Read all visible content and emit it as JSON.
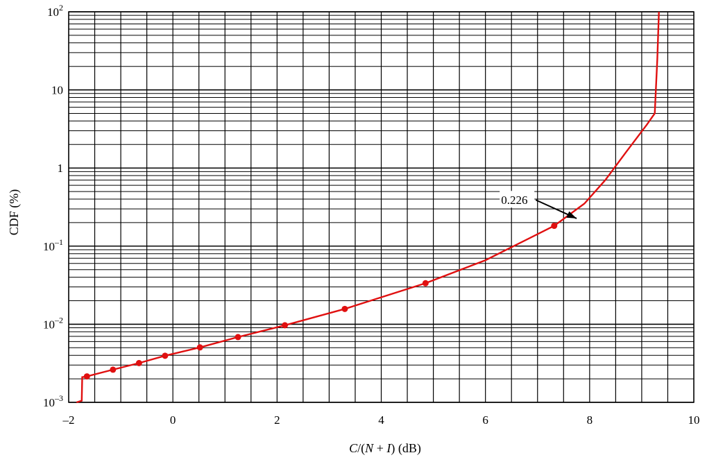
{
  "chart_data": {
    "type": "line",
    "title": "",
    "xlabel": "C/(N + I) (dB)",
    "ylabel": "CDF (%)",
    "xlim": [
      -2,
      10
    ],
    "ylim": [
      0.001,
      100
    ],
    "yscale": "log",
    "grid": true,
    "x_tick_labels": [
      "–2",
      "0",
      "2",
      "4",
      "6",
      "8",
      "10"
    ],
    "y_tick_labels": [
      {
        "base": "10",
        "exp": "–3"
      },
      {
        "base": "10",
        "exp": "–2"
      },
      {
        "base": "10",
        "exp": "–1"
      },
      {
        "base": "1",
        "exp": ""
      },
      {
        "base": "10",
        "exp": ""
      },
      {
        "base": "10",
        "exp": "2"
      }
    ],
    "series": [
      {
        "color": "#e01010",
        "line": [
          [
            -1.85,
            0.001
          ],
          [
            -1.75,
            0.00105
          ],
          [
            -1.74,
            0.0021
          ],
          [
            -1.65,
            0.00215
          ],
          [
            -1.15,
            0.00262
          ],
          [
            -0.65,
            0.00318
          ],
          [
            -0.15,
            0.00395
          ],
          [
            0.52,
            0.00505
          ],
          [
            1.25,
            0.00685
          ],
          [
            2.15,
            0.0097
          ],
          [
            3.3,
            0.0157
          ],
          [
            4.85,
            0.0335
          ],
          [
            6.0,
            0.066
          ],
          [
            7.32,
            0.182
          ],
          [
            7.9,
            0.35
          ],
          [
            8.3,
            0.7
          ],
          [
            8.7,
            1.6
          ],
          [
            9.1,
            3.6
          ],
          [
            9.25,
            5.0
          ],
          [
            9.3,
            25
          ],
          [
            9.33,
            100
          ]
        ],
        "markers": [
          [
            -1.65,
            0.00215
          ],
          [
            -1.15,
            0.00262
          ],
          [
            -0.65,
            0.00318
          ],
          [
            -0.15,
            0.00395
          ],
          [
            0.52,
            0.00505
          ],
          [
            1.25,
            0.00685
          ],
          [
            2.15,
            0.0097
          ],
          [
            3.3,
            0.0157
          ],
          [
            4.85,
            0.0335
          ],
          [
            7.32,
            0.182
          ]
        ]
      }
    ],
    "annotations": [
      {
        "text": "0.226",
        "arrow_to": [
          7.75,
          0.226
        ],
        "text_at": [
          6.3,
          0.39
        ]
      }
    ]
  }
}
